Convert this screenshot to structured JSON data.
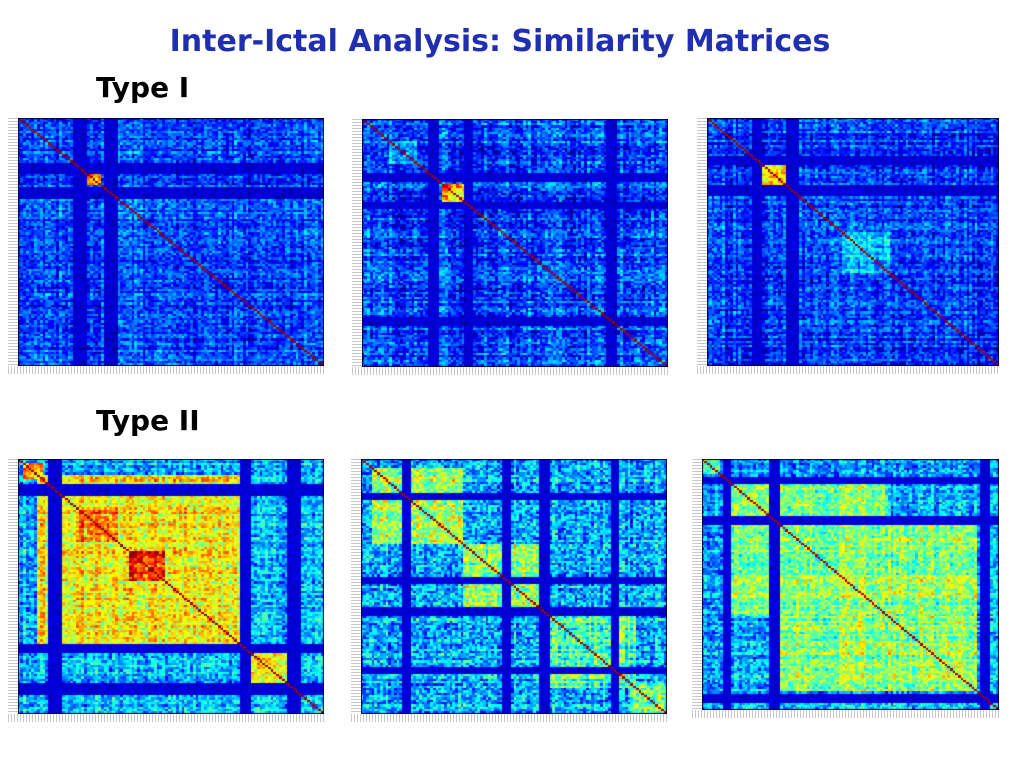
{
  "title": "Inter-Ictal Analysis: Similarity Matrices",
  "sections": {
    "type1_label": "Type I",
    "type2_label": "Type II"
  },
  "matrices": [
    {
      "id": "m1",
      "group": "Type I",
      "n": 110,
      "base": 0.18,
      "noise": 0.1,
      "dark_bands": [
        [
          0.18,
          0.22
        ],
        [
          0.28,
          0.32
        ]
      ],
      "clusters": [
        {
          "start": 0.2,
          "end": 0.27,
          "value": 0.75
        }
      ]
    },
    {
      "id": "m2",
      "group": "Type I",
      "n": 110,
      "base": 0.2,
      "noise": 0.11,
      "dark_bands": [
        [
          0.21,
          0.25
        ],
        [
          0.33,
          0.36
        ],
        [
          0.8,
          0.83
        ]
      ],
      "clusters": [
        {
          "start": 0.26,
          "end": 0.36,
          "value": 0.72
        },
        {
          "start": 0.09,
          "end": 0.18,
          "value": 0.32
        }
      ]
    },
    {
      "id": "m3",
      "group": "Type I",
      "n": 110,
      "base": 0.18,
      "noise": 0.1,
      "dark_bands": [
        [
          0.15,
          0.19
        ],
        [
          0.27,
          0.31
        ]
      ],
      "clusters": [
        {
          "start": 0.15,
          "end": 0.27,
          "value": 0.68
        },
        {
          "start": 0.46,
          "end": 0.62,
          "value": 0.3
        }
      ]
    },
    {
      "id": "m4",
      "group": "Type II",
      "n": 110,
      "base": 0.3,
      "noise": 0.12,
      "dark_bands": [
        [
          0.1,
          0.14
        ],
        [
          0.72,
          0.76
        ],
        [
          0.88,
          0.92
        ]
      ],
      "clusters": [
        {
          "start": 0.06,
          "end": 0.72,
          "value": 0.62
        },
        {
          "start": 0.36,
          "end": 0.48,
          "value": 0.82
        },
        {
          "start": 0.2,
          "end": 0.32,
          "value": 0.72
        },
        {
          "start": 0.72,
          "end": 0.92,
          "value": 0.62
        },
        {
          "start": 0.01,
          "end": 0.08,
          "value": 0.72
        }
      ]
    },
    {
      "id": "m5",
      "group": "Type II",
      "n": 110,
      "base": 0.3,
      "noise": 0.14,
      "dark_bands": [
        [
          0.13,
          0.16
        ],
        [
          0.46,
          0.49
        ],
        [
          0.58,
          0.61
        ],
        [
          0.81,
          0.84
        ]
      ],
      "clusters": [
        {
          "start": 0.03,
          "end": 0.33,
          "value": 0.55
        },
        {
          "start": 0.33,
          "end": 0.58,
          "value": 0.52
        },
        {
          "start": 0.58,
          "end": 0.9,
          "value": 0.45
        },
        {
          "start": 0.88,
          "end": 1.0,
          "value": 0.5
        }
      ]
    },
    {
      "id": "m6",
      "group": "Type II",
      "n": 110,
      "base": 0.3,
      "noise": 0.12,
      "dark_bands": [
        [
          0.07,
          0.1
        ],
        [
          0.22,
          0.26
        ],
        [
          0.93,
          0.97
        ]
      ],
      "clusters": [
        {
          "start": 0.1,
          "end": 0.62,
          "value": 0.5
        },
        {
          "start": 0.26,
          "end": 0.92,
          "value": 0.52
        },
        {
          "start": 0.0,
          "end": 0.06,
          "value": 0.5
        }
      ]
    }
  ]
}
